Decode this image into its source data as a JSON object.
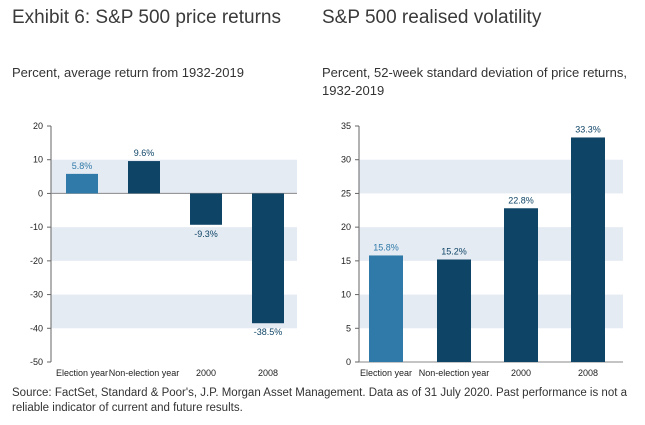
{
  "colors": {
    "band": "#e5ebf3",
    "bar_light": "#2f7aa8",
    "bar_dark": "#0e4466",
    "label_light": "#2f7aa8",
    "label_dark": "#0e4466"
  },
  "left": {
    "title": "Exhibit 6: S&P 500 price returns",
    "subtitle": "Percent, average return from 1932-2019"
  },
  "right": {
    "title": "S&P 500 realised volatility",
    "subtitle": "Percent, 52-week standard deviation of price returns, 1932-2019"
  },
  "source": "Source: FactSet, Standard & Poor's, J.P. Morgan Asset Management. Data as of 31 July 2020. Past performance is not a reliable indicator of current and future results.",
  "chart_data": [
    {
      "type": "bar",
      "title": "Exhibit 6: S&P 500 price returns",
      "subtitle": "Percent, average return from 1932-2019",
      "categories": [
        "Election year",
        "Non-election year",
        "2000",
        "2008"
      ],
      "values": [
        5.8,
        9.6,
        -9.3,
        -38.5
      ],
      "data_labels": [
        "5.8%",
        "9.6%",
        "-9.3%",
        "-38.5%"
      ],
      "bar_colors": [
        "light",
        "dark",
        "dark",
        "dark"
      ],
      "ylim": [
        -50,
        20
      ],
      "yticks": [
        20,
        10,
        0,
        -10,
        -20,
        -30,
        -40,
        -50
      ],
      "xlabel": "",
      "ylabel": "",
      "grid": "alternating horizontal bands"
    },
    {
      "type": "bar",
      "title": "S&P 500 realised volatility",
      "subtitle": "Percent, 52-week standard deviation of price returns, 1932-2019",
      "categories": [
        "Election year",
        "Non-election year",
        "2000",
        "2008"
      ],
      "values": [
        15.8,
        15.2,
        22.8,
        33.3
      ],
      "data_labels": [
        "15.8%",
        "15.2%",
        "22.8%",
        "33.3%"
      ],
      "bar_colors": [
        "light",
        "dark",
        "dark",
        "dark"
      ],
      "ylim": [
        0,
        35
      ],
      "yticks": [
        35,
        30,
        25,
        20,
        15,
        10,
        5,
        0
      ],
      "xlabel": "",
      "ylabel": "",
      "grid": "alternating horizontal bands"
    }
  ]
}
